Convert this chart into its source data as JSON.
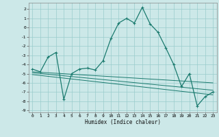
{
  "xlabel": "Humidex (Indice chaleur)",
  "bg_color": "#cce8e8",
  "line_color": "#1a7a6e",
  "grid_color": "#99cccc",
  "xlim": [
    -0.5,
    23.5
  ],
  "ylim": [
    -9.2,
    2.7
  ],
  "yticks": [
    2,
    1,
    0,
    -1,
    -2,
    -3,
    -4,
    -5,
    -6,
    -7,
    -8,
    -9
  ],
  "xticks": [
    0,
    1,
    2,
    3,
    4,
    5,
    6,
    7,
    8,
    9,
    10,
    11,
    12,
    13,
    14,
    15,
    16,
    17,
    18,
    19,
    20,
    21,
    22,
    23
  ],
  "main_series": {
    "x": [
      0,
      1,
      2,
      3,
      4,
      5,
      6,
      7,
      8,
      9,
      10,
      11,
      12,
      13,
      14,
      15,
      16,
      17,
      18,
      19,
      20,
      21,
      22,
      23
    ],
    "y": [
      -4.5,
      -4.8,
      -3.2,
      -2.7,
      -7.8,
      -5.0,
      -4.5,
      -4.4,
      -4.6,
      -3.6,
      -1.2,
      0.5,
      1.0,
      0.5,
      2.2,
      0.4,
      -0.5,
      -2.2,
      -4.0,
      -6.4,
      -5.0,
      -8.5,
      -7.5,
      -7.0
    ]
  },
  "regression_lines": [
    {
      "x": [
        0,
        23
      ],
      "y": [
        -4.8,
        -6.0
      ]
    },
    {
      "x": [
        0,
        23
      ],
      "y": [
        -4.9,
        -6.8
      ]
    },
    {
      "x": [
        0,
        23
      ],
      "y": [
        -5.1,
        -7.3
      ]
    }
  ]
}
